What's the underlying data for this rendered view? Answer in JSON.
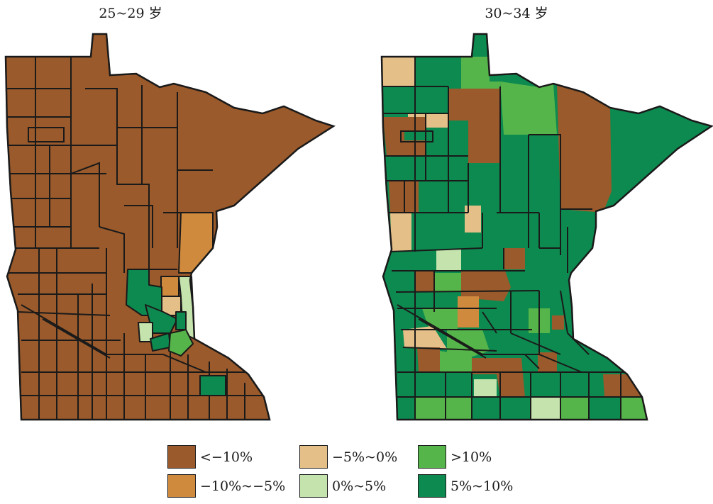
{
  "maps": {
    "left_title": "25~29 岁",
    "right_title": "30~34 岁"
  },
  "colors": {
    "lt_minus10": "#9a5a2b",
    "minus10_to_minus5": "#cf8a3e",
    "minus5_to_0": "#e5bf88",
    "zero_to_5": "#c5e3ad",
    "five_to_10": "#0d8a50",
    "gt10": "#56b54a"
  },
  "legend": {
    "items": [
      {
        "label": "<−10%",
        "color": "#9a5a2b"
      },
      {
        "label": "−5%~0%",
        "color": "#e5bf88"
      },
      {
        "label": ">10%",
        "color": "#56b54a"
      },
      {
        "label": "−10%~−5%",
        "color": "#cf8a3e"
      },
      {
        "label": "0%~5%",
        "color": "#c5e3ad"
      },
      {
        "label": "5%~10%",
        "color": "#0d8a50"
      }
    ]
  }
}
